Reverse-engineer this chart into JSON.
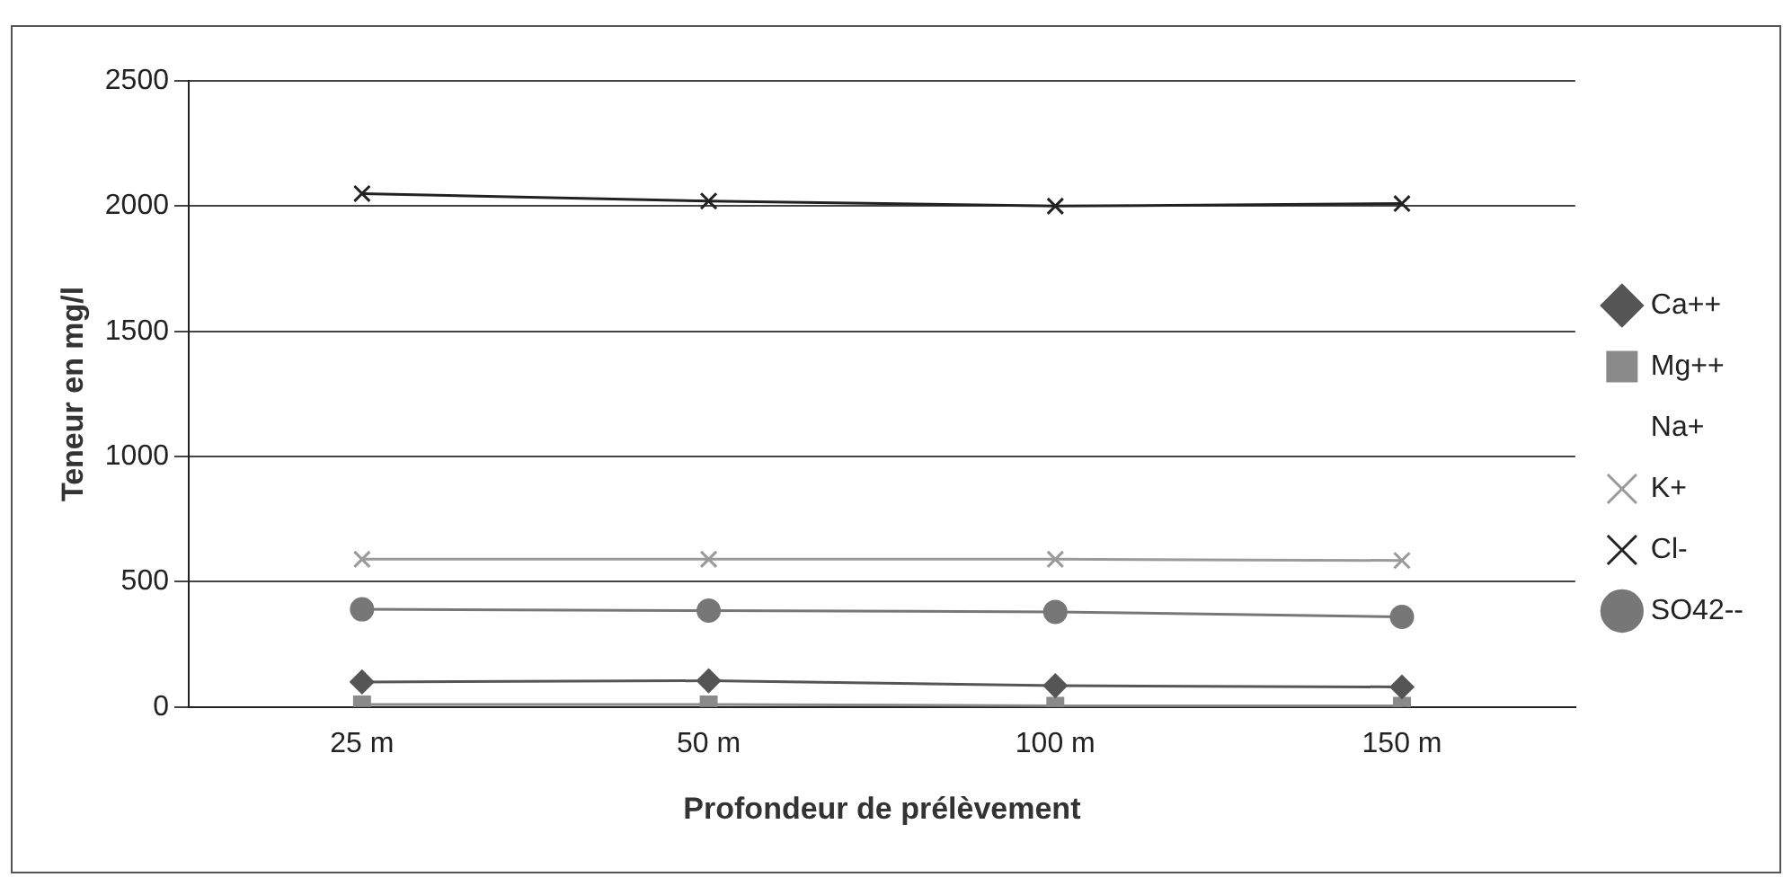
{
  "chart_data": {
    "type": "line",
    "xlabel": "Profondeur de prélèvement",
    "ylabel": "Teneur en mg/l",
    "categories": [
      "25 m",
      "50 m",
      "100 m",
      "150 m"
    ],
    "series": [
      {
        "name": "Ca++",
        "color": "#555555",
        "marker": "diamond",
        "values": [
          100,
          105,
          85,
          80
        ]
      },
      {
        "name": "Mg++",
        "color": "#8a8a8a",
        "marker": "square",
        "values": [
          10,
          10,
          5,
          5
        ]
      },
      {
        "name": "Na+",
        "marker": "none",
        "values": [
          null,
          null,
          null,
          null
        ]
      },
      {
        "name": "K+",
        "color": "#9a9a9a",
        "marker": "cross",
        "values": [
          590,
          590,
          590,
          585
        ]
      },
      {
        "name": "Cl-",
        "color": "#222222",
        "marker": "cross",
        "values": [
          2050,
          2020,
          2000,
          2010
        ]
      },
      {
        "name": "SO42--",
        "color": "#777777",
        "marker": "circle",
        "values": [
          390,
          385,
          380,
          360
        ]
      }
    ],
    "ylim": [
      0,
      2500
    ],
    "yticks": [
      0,
      500,
      1000,
      1500,
      2000,
      2500
    ],
    "grid": "y",
    "legend": "right"
  }
}
